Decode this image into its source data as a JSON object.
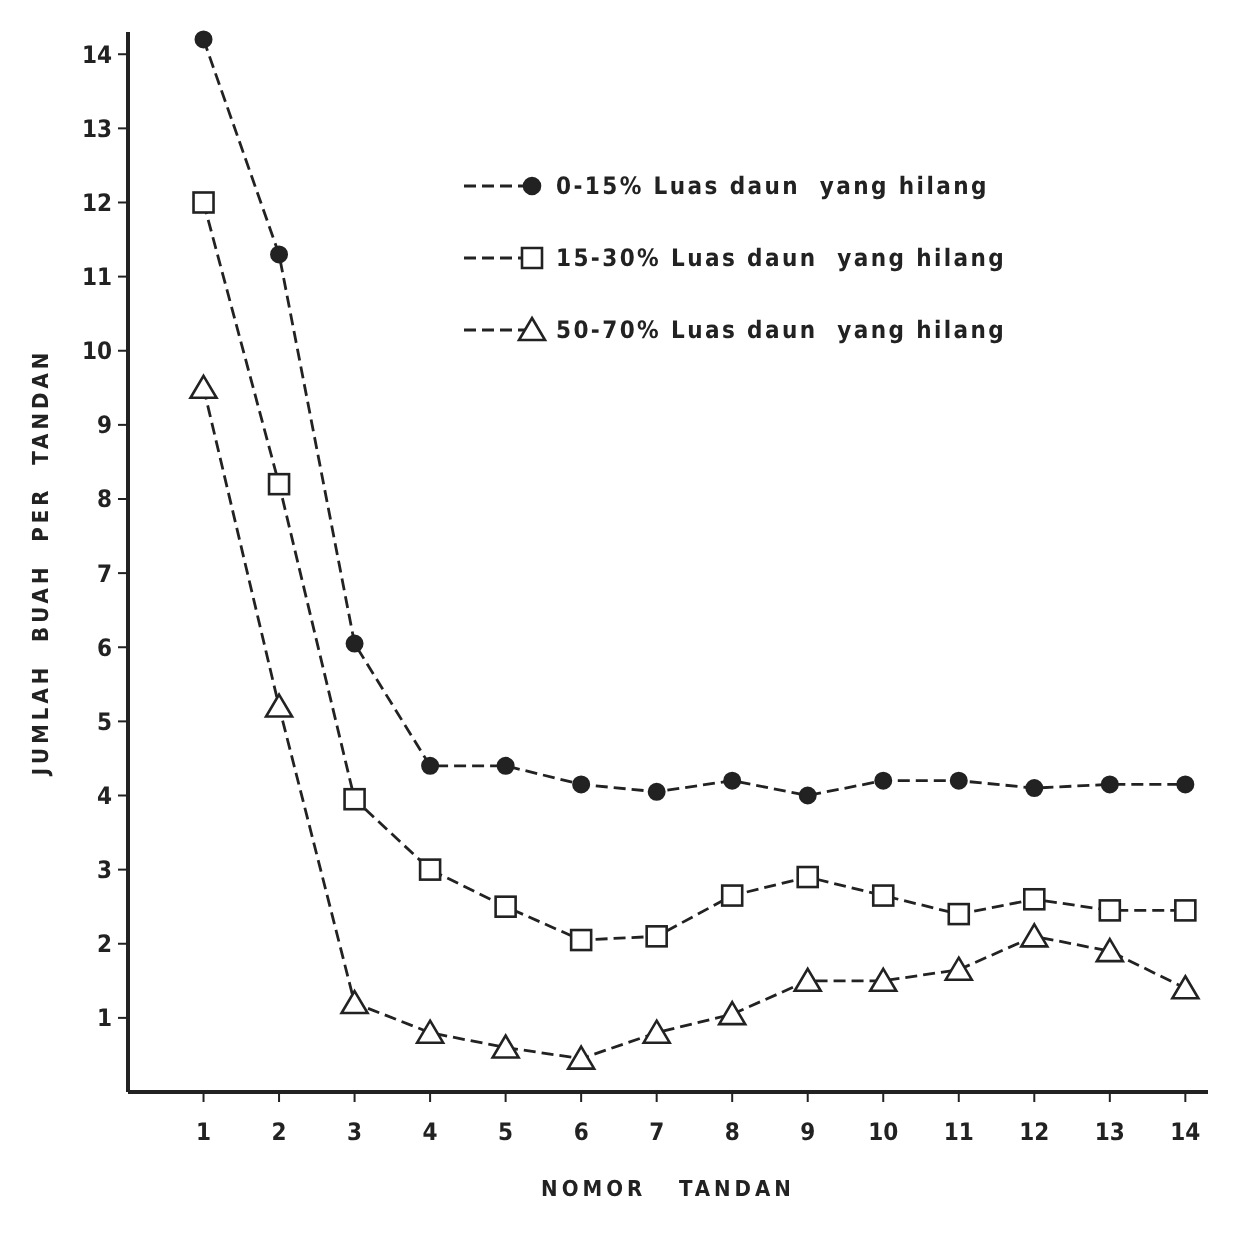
{
  "chart_data": {
    "type": "line",
    "xlabel": "NOMOR   TANDAN",
    "ylabel": "JUMLAH  BUAH  PER  TANDAN",
    "x": [
      1,
      2,
      3,
      4,
      5,
      6,
      7,
      8,
      9,
      10,
      11,
      12,
      13,
      14
    ],
    "xlim": [
      0,
      14.3
    ],
    "xticks": [
      1,
      2,
      3,
      4,
      5,
      6,
      7,
      8,
      9,
      10,
      11,
      12,
      13,
      14
    ],
    "ylim": [
      0,
      14.3
    ],
    "yticks": [
      1,
      2,
      3,
      4,
      5,
      6,
      7,
      8,
      9,
      10,
      11,
      12,
      13,
      14
    ],
    "grid": false,
    "legend": "top right",
    "line_style": "dashed",
    "series": [
      {
        "name": "0-15% Luas daun  yang hilang",
        "color": "#222222",
        "marker": "circle",
        "values": [
          14.2,
          11.3,
          6.05,
          4.4,
          4.4,
          4.15,
          4.05,
          4.2,
          4.0,
          4.2,
          4.2,
          4.1,
          4.15,
          4.15
        ]
      },
      {
        "name": "15-30% Luas daun  yang hilang",
        "color": "#222222",
        "marker": "square",
        "values": [
          12.0,
          8.2,
          3.95,
          3.0,
          2.5,
          2.05,
          2.1,
          2.65,
          2.9,
          2.65,
          2.4,
          2.6,
          2.45,
          2.45
        ]
      },
      {
        "name": "50-70% Luas daun  yang hilang",
        "color": "#222222",
        "marker": "triangle",
        "values": [
          9.5,
          5.2,
          1.2,
          0.8,
          0.6,
          0.45,
          0.8,
          1.05,
          1.5,
          1.5,
          1.65,
          2.1,
          1.9,
          1.4
        ]
      }
    ]
  }
}
